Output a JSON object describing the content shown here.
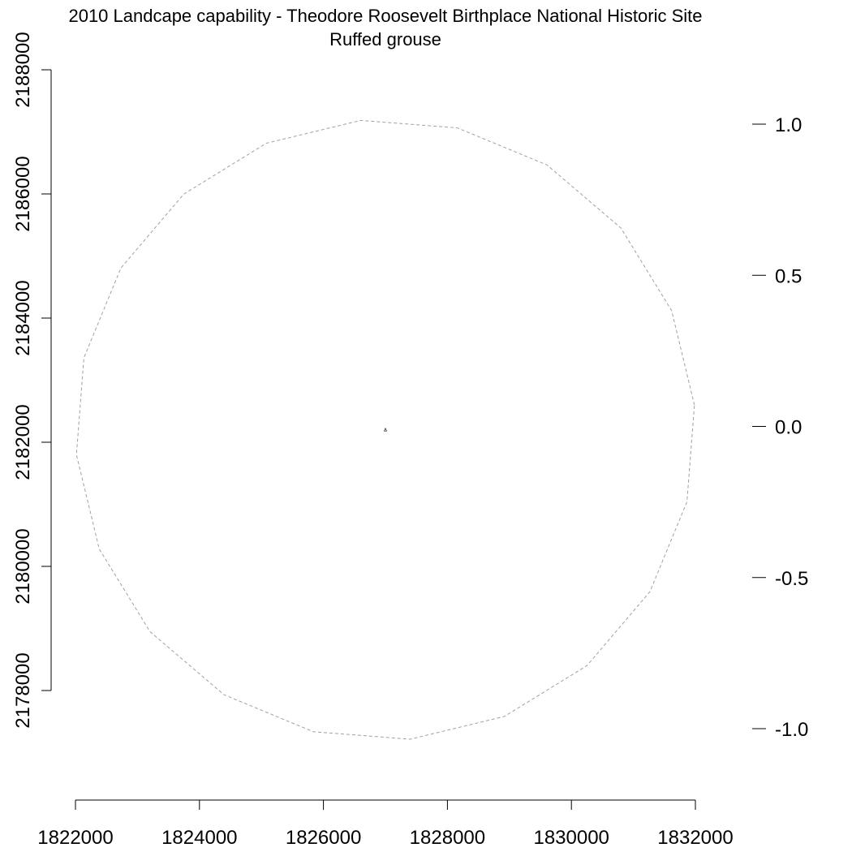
{
  "chart_data": {
    "type": "scatter",
    "title": "2010 Landcape capability - Theodore Roosevelt Birthplace National Historic Site",
    "subtitle": "Ruffed grouse",
    "x_axis": {
      "range": [
        1822000,
        1832000
      ],
      "ticks": [
        1822000,
        1824000,
        1826000,
        1828000,
        1830000,
        1832000
      ],
      "tick_labels": [
        "1822000",
        "1824000",
        "1826000",
        "1828000",
        "1830000",
        "1832000"
      ]
    },
    "y_axis": {
      "range": [
        2178000,
        2188000
      ],
      "ticks": [
        2178000,
        2180000,
        2182000,
        2184000,
        2186000,
        2188000
      ],
      "tick_labels": [
        "2178000",
        "2180000",
        "2182000",
        "2184000",
        "2186000",
        "2188000"
      ]
    },
    "legend_scale": {
      "range": [
        -1.0,
        1.0
      ],
      "ticks": [
        1.0,
        0.5,
        0.0,
        -0.5,
        -1.0
      ],
      "tick_labels": [
        "1.0",
        "0.5",
        "0.0",
        "-0.5",
        "-1.0"
      ]
    },
    "buffer_circle": {
      "center": [
        1827000,
        2182200
      ],
      "radius": 5000,
      "segments": 20,
      "color": "#a0a0a0",
      "style": "dashed"
    },
    "site_point": {
      "x": 1827000,
      "y": 2182200,
      "color": "#000000"
    },
    "grid": false
  }
}
